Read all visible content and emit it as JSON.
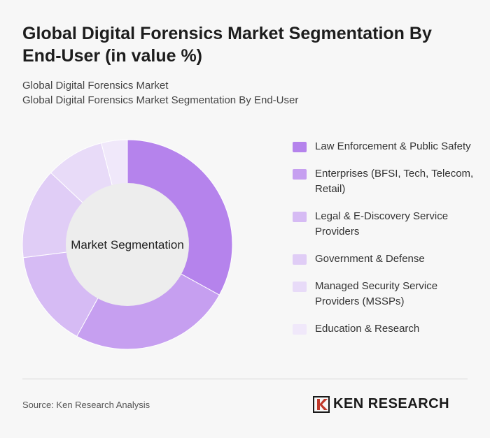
{
  "header": {
    "title": "Global Digital Forensics Market Segmentation By End-User (in value %)",
    "subtitle_1": "Global Digital Forensics Market",
    "subtitle_2": "Global Digital Forensics Market Segmentation By End-User"
  },
  "chart_data": {
    "type": "pie",
    "donut": true,
    "center_label": "Market Segmentation",
    "legend_position": "right",
    "categories": [
      "Law Enforcement & Public Safety",
      "Enterprises (BFSI, Tech, Telecom, Retail)",
      "Legal & E-Discovery Service Providers",
      "Government & Defense",
      "Managed Security Service Providers (MSSPs)",
      "Education & Research"
    ],
    "values": [
      33,
      25,
      15,
      14,
      9,
      4
    ],
    "colors": [
      "#b583ec",
      "#c69ff0",
      "#d6bbf4",
      "#e0cdf6",
      "#e8dbf8",
      "#f0e8fa"
    ]
  },
  "footer": {
    "source": "Source: Ken Research Analysis",
    "brand": "KEN RESEARCH",
    "logo_icon": "ken-research-k-logo"
  }
}
